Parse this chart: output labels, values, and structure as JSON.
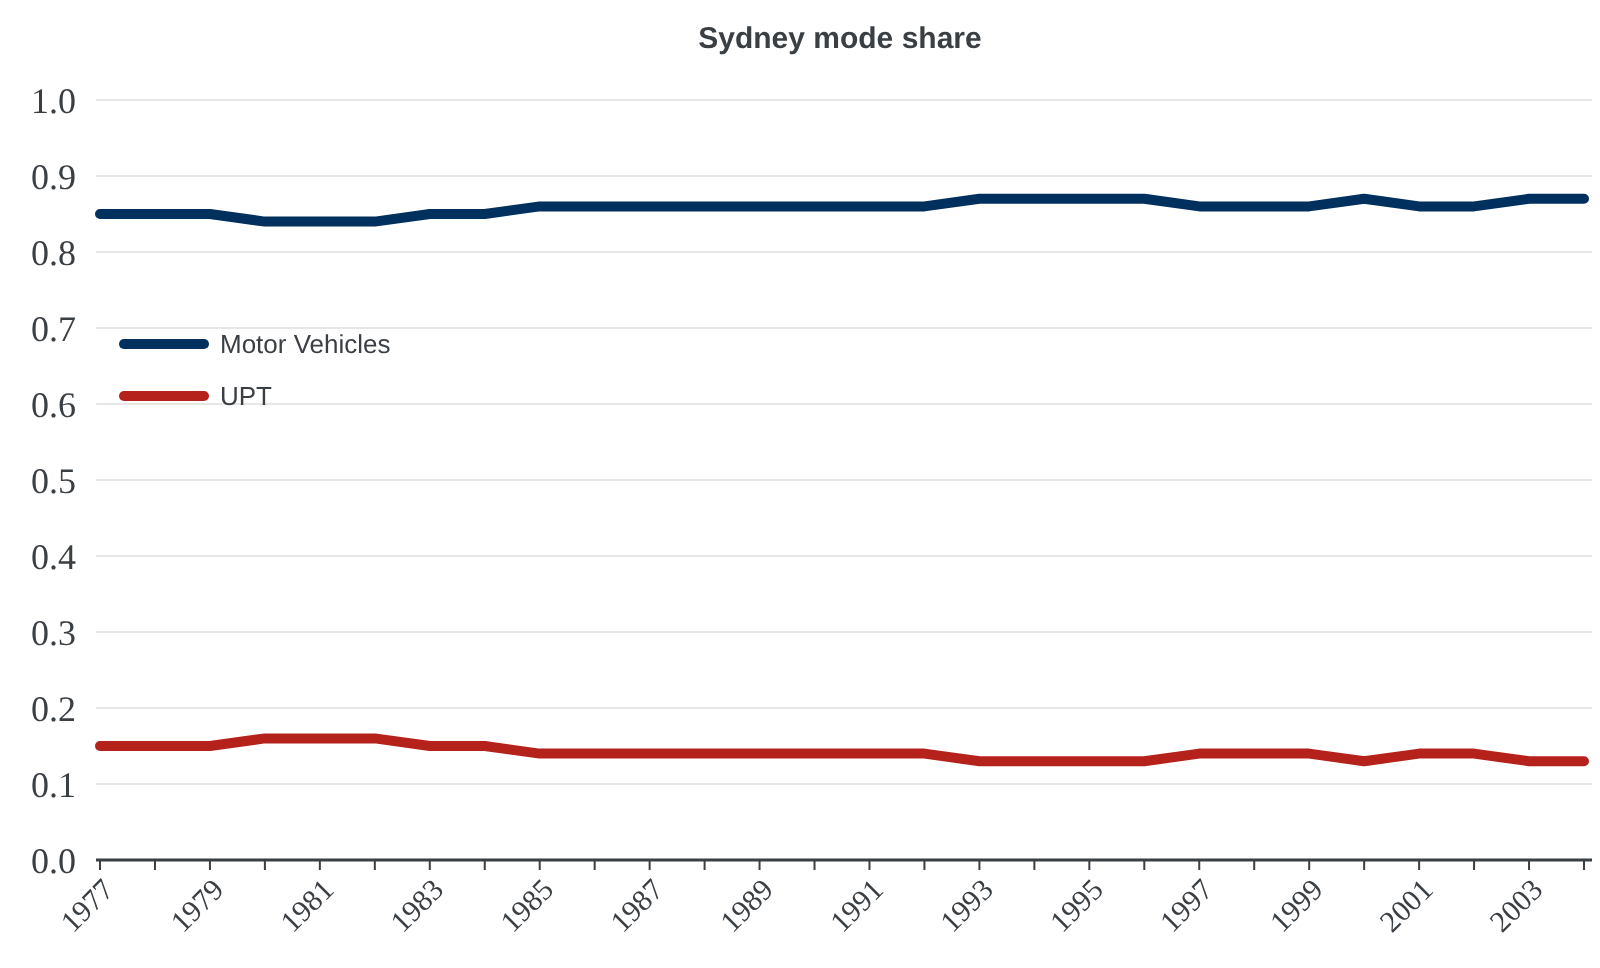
{
  "chart_data": {
    "type": "line",
    "title": "Sydney mode share",
    "categories": [
      "1977",
      null,
      "1979",
      null,
      "1981",
      null,
      "1983",
      null,
      "1985",
      null,
      "1987",
      null,
      "1989",
      null,
      "1991",
      null,
      "1993",
      null,
      "1995",
      null,
      "1997",
      null,
      "1999",
      null,
      "2001",
      null,
      "2003",
      null
    ],
    "series": [
      {
        "name": "Motor Vehicles",
        "color": "#00305e",
        "values": [
          0.85,
          0.85,
          0.85,
          0.84,
          0.84,
          0.84,
          0.85,
          0.85,
          0.86,
          0.86,
          0.86,
          0.86,
          0.86,
          0.86,
          0.86,
          0.86,
          0.87,
          0.87,
          0.87,
          0.87,
          0.86,
          0.86,
          0.86,
          0.87,
          0.86,
          0.86,
          0.87,
          0.87
        ]
      },
      {
        "name": "UPT",
        "color": "#b5221b",
        "values": [
          0.15,
          0.15,
          0.15,
          0.16,
          0.16,
          0.16,
          0.15,
          0.15,
          0.14,
          0.14,
          0.14,
          0.14,
          0.14,
          0.14,
          0.14,
          0.14,
          0.13,
          0.13,
          0.13,
          0.13,
          0.14,
          0.14,
          0.14,
          0.13,
          0.14,
          0.14,
          0.13,
          0.13
        ]
      }
    ],
    "ylim": [
      0,
      1
    ],
    "yticks": [
      {
        "value": 0,
        "label": "0.0"
      },
      0.1,
      0.2,
      0.3,
      0.4,
      0.5,
      0.6,
      0.7,
      0.8,
      0.9,
      {
        "value": 1,
        "label": "1.0"
      }
    ],
    "grid": "y",
    "legend": "left",
    "marker": "none",
    "line_style": "solid"
  }
}
